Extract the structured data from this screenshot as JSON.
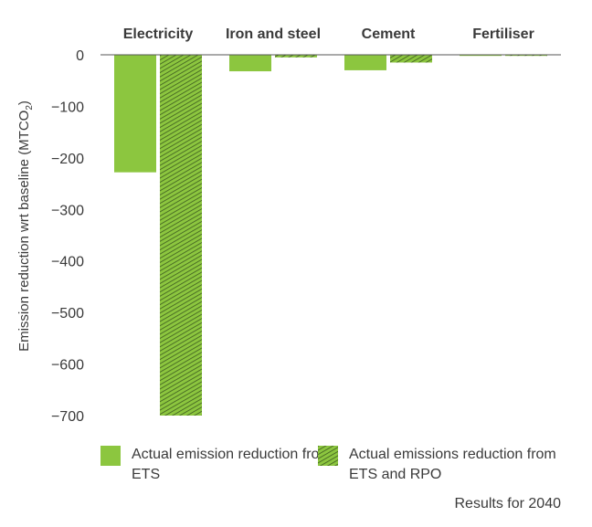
{
  "chart_data": {
    "type": "bar",
    "categories": [
      "Electricity",
      "Iron and steel",
      "Cement",
      "Fertiliser"
    ],
    "series": [
      {
        "name": "Actual emission reduction  from ETS",
        "values": [
          -228,
          -32,
          -30,
          -2
        ],
        "color": "#8cc63f",
        "pattern": "solid"
      },
      {
        "name": "Actual emissions reduction from ETS and RPO",
        "values": [
          -700,
          -5,
          -15,
          -2
        ],
        "color": "#76a33a",
        "pattern": "hatched"
      }
    ],
    "ylabel": "Emission reduction wrt baseline (MTCO2)",
    "ylabel_main": "Emission reduction wrt baseline (MTCO",
    "ylabel_sub": "2",
    "ylabel_end": ")",
    "yticks": [
      0,
      -100,
      -200,
      -300,
      -400,
      -500,
      -600,
      -700
    ],
    "ytick_labels": [
      "0",
      "-100",
      "-200",
      "-300",
      "-400",
      "-500",
      "-600",
      "-700"
    ],
    "ylim": [
      -700,
      0
    ],
    "grid": false,
    "category_position": "top",
    "legend_position": "bottom",
    "note": "Results for 2040"
  }
}
